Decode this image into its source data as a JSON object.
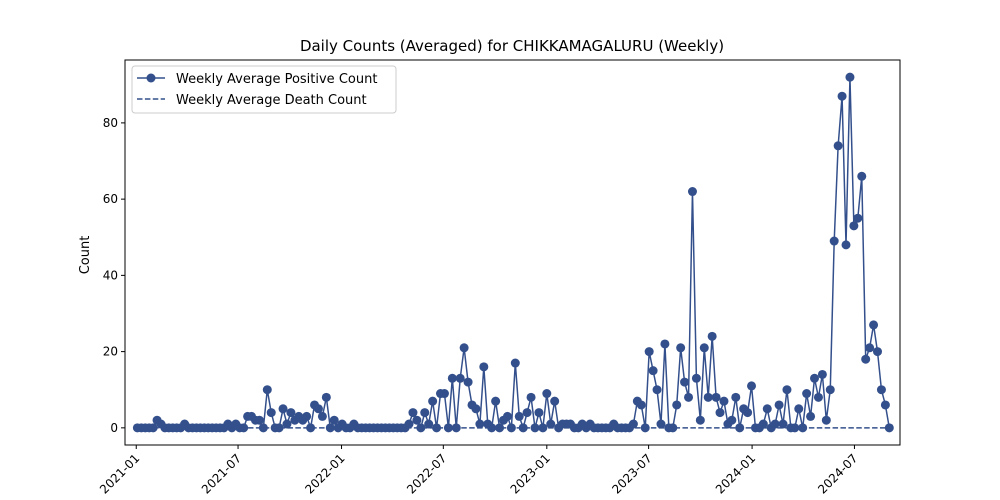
{
  "chart_data": {
    "type": "line",
    "title": "Daily Counts (Averaged) for CHIKKAMAGALURU (Weekly)",
    "xlabel": "",
    "ylabel": "Count",
    "xlim": [
      "2020-12-12",
      "2024-09-20"
    ],
    "ylim": [
      -4.5,
      96.5
    ],
    "x_ticks": [
      "2021-01",
      "2021-07",
      "2022-01",
      "2022-07",
      "2023-01",
      "2023-07",
      "2024-01",
      "2024-07"
    ],
    "x_tick_dates": [
      "2021-01-01",
      "2021-07-01",
      "2022-01-01",
      "2022-07-01",
      "2023-01-01",
      "2023-07-01",
      "2024-01-01",
      "2024-07-01"
    ],
    "y_ticks": [
      0,
      20,
      40,
      60,
      80
    ],
    "grid": false,
    "legend_position": "top-left",
    "colors": {
      "series": "#34508c",
      "axes": "#000000",
      "legend_border": "#cccccc"
    },
    "series": [
      {
        "name": "Weekly Average Positive Count",
        "style": "line-with-markers",
        "points": [
          [
            "2021-01-03",
            0
          ],
          [
            "2021-01-10",
            0
          ],
          [
            "2021-01-17",
            0
          ],
          [
            "2021-01-24",
            0
          ],
          [
            "2021-01-31",
            0
          ],
          [
            "2021-02-07",
            2
          ],
          [
            "2021-02-14",
            1
          ],
          [
            "2021-02-21",
            0
          ],
          [
            "2021-02-28",
            0
          ],
          [
            "2021-03-07",
            0
          ],
          [
            "2021-03-14",
            0
          ],
          [
            "2021-03-21",
            0
          ],
          [
            "2021-03-28",
            1
          ],
          [
            "2021-04-04",
            0
          ],
          [
            "2021-04-11",
            0
          ],
          [
            "2021-04-18",
            0
          ],
          [
            "2021-04-25",
            0
          ],
          [
            "2021-05-02",
            0
          ],
          [
            "2021-05-09",
            0
          ],
          [
            "2021-05-16",
            0
          ],
          [
            "2021-05-23",
            0
          ],
          [
            "2021-05-30",
            0
          ],
          [
            "2021-06-06",
            0
          ],
          [
            "2021-06-13",
            1
          ],
          [
            "2021-06-20",
            0
          ],
          [
            "2021-06-27",
            1
          ],
          [
            "2021-07-04",
            0
          ],
          [
            "2021-07-11",
            0
          ],
          [
            "2021-07-18",
            3
          ],
          [
            "2021-07-25",
            3
          ],
          [
            "2021-08-01",
            2
          ],
          [
            "2021-08-08",
            2
          ],
          [
            "2021-08-15",
            0
          ],
          [
            "2021-08-22",
            10
          ],
          [
            "2021-08-29",
            4
          ],
          [
            "2021-09-05",
            0
          ],
          [
            "2021-09-12",
            0
          ],
          [
            "2021-09-19",
            5
          ],
          [
            "2021-09-26",
            1
          ],
          [
            "2021-10-03",
            4
          ],
          [
            "2021-10-10",
            2
          ],
          [
            "2021-10-17",
            3
          ],
          [
            "2021-10-24",
            2
          ],
          [
            "2021-10-31",
            3
          ],
          [
            "2021-11-07",
            0
          ],
          [
            "2021-11-14",
            6
          ],
          [
            "2021-11-21",
            5
          ],
          [
            "2021-11-28",
            3
          ],
          [
            "2021-12-05",
            8
          ],
          [
            "2021-12-12",
            0
          ],
          [
            "2021-12-19",
            2
          ],
          [
            "2021-12-26",
            0
          ],
          [
            "2022-01-02",
            1
          ],
          [
            "2022-01-09",
            0
          ],
          [
            "2022-01-16",
            0
          ],
          [
            "2022-01-23",
            1
          ],
          [
            "2022-01-30",
            0
          ],
          [
            "2022-02-06",
            0
          ],
          [
            "2022-02-13",
            0
          ],
          [
            "2022-02-20",
            0
          ],
          [
            "2022-02-27",
            0
          ],
          [
            "2022-03-06",
            0
          ],
          [
            "2022-03-13",
            0
          ],
          [
            "2022-03-20",
            0
          ],
          [
            "2022-03-27",
            0
          ],
          [
            "2022-04-03",
            0
          ],
          [
            "2022-04-10",
            0
          ],
          [
            "2022-04-17",
            0
          ],
          [
            "2022-04-24",
            0
          ],
          [
            "2022-05-01",
            1
          ],
          [
            "2022-05-08",
            4
          ],
          [
            "2022-05-15",
            2
          ],
          [
            "2022-05-22",
            0
          ],
          [
            "2022-05-29",
            4
          ],
          [
            "2022-06-05",
            1
          ],
          [
            "2022-06-12",
            7
          ],
          [
            "2022-06-19",
            0
          ],
          [
            "2022-06-26",
            9
          ],
          [
            "2022-07-03",
            9
          ],
          [
            "2022-07-10",
            0
          ],
          [
            "2022-07-17",
            13
          ],
          [
            "2022-07-24",
            0
          ],
          [
            "2022-07-31",
            13
          ],
          [
            "2022-08-07",
            21
          ],
          [
            "2022-08-14",
            12
          ],
          [
            "2022-08-21",
            6
          ],
          [
            "2022-08-28",
            5
          ],
          [
            "2022-09-04",
            1
          ],
          [
            "2022-09-11",
            16
          ],
          [
            "2022-09-18",
            1
          ],
          [
            "2022-09-25",
            0
          ],
          [
            "2022-10-02",
            7
          ],
          [
            "2022-10-09",
            0
          ],
          [
            "2022-10-16",
            2
          ],
          [
            "2022-10-23",
            3
          ],
          [
            "2022-10-30",
            0
          ],
          [
            "2022-11-06",
            17
          ],
          [
            "2022-11-13",
            3
          ],
          [
            "2022-11-20",
            0
          ],
          [
            "2022-11-27",
            4
          ],
          [
            "2022-12-04",
            8
          ],
          [
            "2022-12-11",
            0
          ],
          [
            "2022-12-18",
            4
          ],
          [
            "2022-12-25",
            0
          ],
          [
            "2023-01-01",
            9
          ],
          [
            "2023-01-08",
            1
          ],
          [
            "2023-01-15",
            7
          ],
          [
            "2023-01-22",
            0
          ],
          [
            "2023-01-29",
            1
          ],
          [
            "2023-02-05",
            1
          ],
          [
            "2023-02-12",
            1
          ],
          [
            "2023-02-19",
            0
          ],
          [
            "2023-02-26",
            0
          ],
          [
            "2023-03-05",
            1
          ],
          [
            "2023-03-12",
            0
          ],
          [
            "2023-03-19",
            1
          ],
          [
            "2023-03-26",
            0
          ],
          [
            "2023-04-02",
            0
          ],
          [
            "2023-04-09",
            0
          ],
          [
            "2023-04-16",
            0
          ],
          [
            "2023-04-23",
            0
          ],
          [
            "2023-04-30",
            1
          ],
          [
            "2023-05-07",
            0
          ],
          [
            "2023-05-14",
            0
          ],
          [
            "2023-05-21",
            0
          ],
          [
            "2023-05-28",
            0
          ],
          [
            "2023-06-04",
            1
          ],
          [
            "2023-06-11",
            7
          ],
          [
            "2023-06-18",
            6
          ],
          [
            "2023-06-25",
            0
          ],
          [
            "2023-07-02",
            20
          ],
          [
            "2023-07-09",
            15
          ],
          [
            "2023-07-16",
            10
          ],
          [
            "2023-07-23",
            1
          ],
          [
            "2023-07-30",
            22
          ],
          [
            "2023-08-06",
            0
          ],
          [
            "2023-08-13",
            0
          ],
          [
            "2023-08-20",
            6
          ],
          [
            "2023-08-27",
            21
          ],
          [
            "2023-09-03",
            12
          ],
          [
            "2023-09-10",
            8
          ],
          [
            "2023-09-17",
            62
          ],
          [
            "2023-09-24",
            13
          ],
          [
            "2023-10-01",
            2
          ],
          [
            "2023-10-08",
            21
          ],
          [
            "2023-10-15",
            8
          ],
          [
            "2023-10-22",
            24
          ],
          [
            "2023-10-29",
            8
          ],
          [
            "2023-11-05",
            4
          ],
          [
            "2023-11-12",
            7
          ],
          [
            "2023-11-19",
            1
          ],
          [
            "2023-11-26",
            2
          ],
          [
            "2023-12-03",
            8
          ],
          [
            "2023-12-10",
            0
          ],
          [
            "2023-12-17",
            5
          ],
          [
            "2023-12-24",
            4
          ],
          [
            "2023-12-31",
            11
          ],
          [
            "2024-01-07",
            0
          ],
          [
            "2024-01-14",
            0
          ],
          [
            "2024-01-21",
            1
          ],
          [
            "2024-01-28",
            5
          ],
          [
            "2024-02-04",
            0
          ],
          [
            "2024-02-11",
            1
          ],
          [
            "2024-02-18",
            6
          ],
          [
            "2024-02-25",
            1
          ],
          [
            "2024-03-03",
            10
          ],
          [
            "2024-03-10",
            0
          ],
          [
            "2024-03-17",
            0
          ],
          [
            "2024-03-24",
            5
          ],
          [
            "2024-03-31",
            0
          ],
          [
            "2024-04-07",
            9
          ],
          [
            "2024-04-14",
            3
          ],
          [
            "2024-04-21",
            13
          ],
          [
            "2024-04-28",
            8
          ],
          [
            "2024-05-05",
            14
          ],
          [
            "2024-05-12",
            2
          ],
          [
            "2024-05-19",
            10
          ],
          [
            "2024-05-26",
            49
          ],
          [
            "2024-06-02",
            74
          ],
          [
            "2024-06-09",
            87
          ],
          [
            "2024-06-16",
            48
          ],
          [
            "2024-06-23",
            92
          ],
          [
            "2024-06-30",
            53
          ],
          [
            "2024-07-07",
            55
          ],
          [
            "2024-07-14",
            66
          ],
          [
            "2024-07-21",
            18
          ],
          [
            "2024-07-28",
            21
          ],
          [
            "2024-08-04",
            27
          ],
          [
            "2024-08-11",
            20
          ],
          [
            "2024-08-18",
            10
          ],
          [
            "2024-08-25",
            6
          ],
          [
            "2024-09-01",
            0
          ]
        ]
      },
      {
        "name": "Weekly Average Death Count",
        "style": "dashed",
        "points": [
          [
            "2021-01-03",
            0
          ],
          [
            "2024-09-01",
            0
          ]
        ]
      }
    ]
  }
}
